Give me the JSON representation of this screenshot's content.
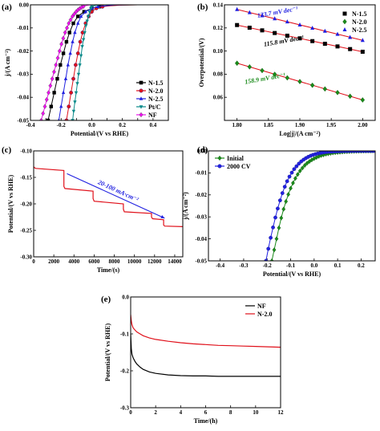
{
  "chart_data": [
    {
      "id": "a",
      "panel_label": "(a)",
      "type": "line",
      "xlabel": "Potential/(V vs RHE)",
      "ylabel": "j/(A cm⁻²)",
      "xlim": [
        -0.4,
        0.5
      ],
      "ylim": [
        -0.05,
        0.0
      ],
      "xticks": [
        -0.4,
        -0.3,
        -0.2,
        -0.1,
        0.0,
        0.1,
        0.2,
        0.3,
        0.4,
        0.5
      ],
      "xtick_labels": [
        "-0.4",
        "",
        "-0.2",
        "",
        "0.0",
        "",
        "0.2",
        "",
        "0.4",
        ""
      ],
      "yticks": [
        0.0,
        -0.01,
        -0.02,
        -0.03,
        -0.04,
        -0.05
      ],
      "ytick_labels": [
        "0.00",
        "-0.01",
        "-0.02",
        "-0.03",
        "-0.04",
        "-0.05"
      ],
      "legend_position": "bottom-right",
      "series": [
        {
          "name": "N-1.5",
          "color": "#000000",
          "marker": "square",
          "x": [
            -0.285,
            -0.265,
            -0.245,
            -0.225,
            -0.205,
            -0.185,
            -0.165,
            -0.145,
            -0.12,
            -0.09,
            -0.05,
            0.0,
            0.05,
            0.1,
            0.15,
            0.2,
            0.3,
            0.4,
            0.5
          ],
          "y": [
            -0.05,
            -0.044,
            -0.038,
            -0.032,
            -0.026,
            -0.021,
            -0.016,
            -0.012,
            -0.008,
            -0.005,
            -0.003,
            -0.0015,
            -0.0008,
            -0.0004,
            -0.0002,
            -0.0001,
            0.0,
            0.0,
            0.0
          ]
        },
        {
          "name": "N-2.0",
          "color": "#e0101a",
          "marker": "circle",
          "x": [
            -0.165,
            -0.15,
            -0.135,
            -0.12,
            -0.105,
            -0.09,
            -0.075,
            -0.06,
            -0.04,
            -0.02,
            0.0,
            0.03,
            0.07,
            0.12,
            0.2,
            0.3,
            0.4,
            0.5
          ],
          "y": [
            -0.05,
            -0.044,
            -0.038,
            -0.032,
            -0.026,
            -0.021,
            -0.016,
            -0.012,
            -0.008,
            -0.005,
            -0.003,
            -0.0015,
            -0.0008,
            -0.0004,
            -0.0001,
            0.0,
            0.0,
            0.0
          ]
        },
        {
          "name": "N-2.5",
          "color": "#2020e0",
          "marker": "triangle",
          "x": [
            -0.215,
            -0.2,
            -0.185,
            -0.17,
            -0.155,
            -0.14,
            -0.125,
            -0.11,
            -0.09,
            -0.07,
            -0.04,
            0.0,
            0.04,
            0.09,
            0.15,
            0.25,
            0.35,
            0.5
          ],
          "y": [
            -0.05,
            -0.044,
            -0.038,
            -0.032,
            -0.026,
            -0.021,
            -0.016,
            -0.012,
            -0.008,
            -0.005,
            -0.003,
            -0.0015,
            -0.0008,
            -0.0004,
            -0.0001,
            0.0,
            0.0,
            0.0
          ]
        },
        {
          "name": "Pt/C",
          "color": "#0a8a8a",
          "marker": "triangle-down",
          "x": [
            -0.125,
            -0.118,
            -0.11,
            -0.102,
            -0.094,
            -0.086,
            -0.078,
            -0.07,
            -0.062,
            -0.054,
            -0.046,
            -0.038,
            -0.03,
            -0.022,
            -0.014,
            -0.006,
            0.0,
            0.02,
            0.05,
            0.1,
            0.2,
            0.3,
            0.4,
            0.5
          ],
          "y": [
            -0.05,
            -0.046,
            -0.042,
            -0.038,
            -0.034,
            -0.03,
            -0.026,
            -0.022,
            -0.018,
            -0.015,
            -0.012,
            -0.009,
            -0.007,
            -0.005,
            -0.003,
            -0.0015,
            -0.0008,
            -0.0003,
            -0.0001,
            0.0,
            0.0,
            0.0,
            0.0,
            0.0
          ]
        },
        {
          "name": "NF",
          "color": "#ee10ee",
          "marker": "diamond",
          "x": [
            -0.33,
            -0.318,
            -0.306,
            -0.294,
            -0.282,
            -0.27,
            -0.258,
            -0.246,
            -0.234,
            -0.222,
            -0.21,
            -0.198,
            -0.186,
            -0.174,
            -0.162,
            -0.15,
            -0.138,
            -0.126,
            -0.114,
            -0.102,
            -0.09,
            -0.078,
            -0.066,
            -0.054,
            -0.042,
            -0.03,
            -0.018,
            -0.006,
            0.006,
            0.02,
            0.05,
            0.1,
            0.2,
            0.3,
            0.4,
            0.5
          ],
          "y": [
            -0.05,
            -0.047,
            -0.044,
            -0.041,
            -0.038,
            -0.035,
            -0.032,
            -0.029,
            -0.026,
            -0.023,
            -0.02,
            -0.017,
            -0.0145,
            -0.012,
            -0.01,
            -0.008,
            -0.0065,
            -0.005,
            -0.004,
            -0.003,
            -0.0022,
            -0.0016,
            -0.0011,
            -0.0007,
            -0.0004,
            -0.0002,
            -0.0001,
            -5e-05,
            0.0,
            0.0,
            0.0,
            0.0,
            0.0,
            0.0,
            0.0,
            0.0
          ]
        }
      ]
    },
    {
      "id": "b",
      "panel_label": "(b)",
      "type": "scatter",
      "xlabel": "Log|j|/(A cm⁻²)",
      "ylabel": "Overpotential/(V)",
      "xlim": [
        1.78,
        2.02
      ],
      "ylim": [
        0.04,
        0.14
      ],
      "xticks": [
        1.8,
        1.85,
        1.9,
        1.95,
        2.0
      ],
      "xtick_labels": [
        "1.80",
        "1.85",
        "1.90",
        "1.95",
        "2.00"
      ],
      "yticks": [
        0.06,
        0.08,
        0.1,
        0.12,
        0.14
      ],
      "ytick_labels": [
        "0.06",
        "0.08",
        "0.10",
        "0.12",
        "0.14"
      ],
      "legend_position": "top-right",
      "series": [
        {
          "name": "N-1.5",
          "color": "#000000",
          "marker": "square",
          "fit_color": "#e0101a",
          "x": [
            1.8,
            1.82,
            1.84,
            1.86,
            1.88,
            1.9,
            1.92,
            1.94,
            1.96,
            1.98,
            2.0
          ],
          "y": [
            0.1225,
            0.1202,
            0.1179,
            0.1156,
            0.1133,
            0.111,
            0.1086,
            0.1063,
            0.104,
            0.1017,
            0.0994
          ]
        },
        {
          "name": "N-2.0",
          "color": "#1a8a1a",
          "marker": "diamond",
          "fit_color": "#e0101a",
          "x": [
            1.8,
            1.82,
            1.84,
            1.86,
            1.88,
            1.9,
            1.92,
            1.94,
            1.96,
            1.98,
            2.0
          ],
          "y": [
            0.0895,
            0.0863,
            0.0831,
            0.0799,
            0.0768,
            0.0736,
            0.0704,
            0.0672,
            0.0641,
            0.0609,
            0.0577
          ]
        },
        {
          "name": "N-2.5",
          "color": "#2020e0",
          "marker": "triangle",
          "fit_color": "#e0101a",
          "x": [
            1.8,
            1.82,
            1.84,
            1.86,
            1.88,
            1.9,
            1.92,
            1.94,
            1.96,
            1.98,
            2.0
          ],
          "y": [
            0.136,
            0.1333,
            0.1306,
            0.128,
            0.1253,
            0.1226,
            0.1199,
            0.1173,
            0.1146,
            0.1119,
            0.1093
          ]
        }
      ],
      "annotations": [
        {
          "text": "133.7 mV dec⁻¹",
          "color": "#2020e0",
          "x": 1.865,
          "y": 0.132
        },
        {
          "text": "115.8 mV dec⁻¹",
          "color": "#000000",
          "x": 1.875,
          "y": 0.107
        },
        {
          "text": "158.9 mV dec⁻¹",
          "color": "#1a8a1a",
          "x": 1.845,
          "y": 0.0745
        }
      ]
    },
    {
      "id": "c",
      "panel_label": "(c)",
      "type": "line",
      "xlabel": "Time/(s)",
      "ylabel": "Potential/(V vs RHE)",
      "xlim": [
        0,
        14800
      ],
      "ylim": [
        -0.3,
        -0.1
      ],
      "xticks": [
        0,
        2000,
        4000,
        6000,
        8000,
        10000,
        12000,
        14000
      ],
      "xtick_labels": [
        "0",
        "2000",
        "4000",
        "6000",
        "8000",
        "10000",
        "12000",
        "14000"
      ],
      "yticks": [
        -0.1,
        -0.15,
        -0.2,
        -0.25,
        -0.3
      ],
      "ytick_labels": [
        "-0.10",
        "-0.15",
        "-0.20",
        "-0.25",
        "-0.30"
      ],
      "series": [
        {
          "name": "",
          "color": "#e0101a",
          "x": [
            0,
            100,
            200,
            3000,
            3000,
            3100,
            5900,
            5900,
            6000,
            8900,
            8900,
            9000,
            11700,
            11700,
            11800,
            12900,
            12900,
            13000,
            14800
          ],
          "y": [
            -0.13,
            -0.132,
            -0.133,
            -0.137,
            -0.167,
            -0.171,
            -0.176,
            -0.19,
            -0.195,
            -0.2,
            -0.21,
            -0.215,
            -0.218,
            -0.225,
            -0.228,
            -0.23,
            -0.24,
            -0.242,
            -0.243
          ]
        }
      ],
      "annotations": [
        {
          "text": "20-100 mA·cm⁻²",
          "color": "#2020e0",
          "arrow_from": [
            3300,
            -0.143
          ],
          "arrow_to": [
            13000,
            -0.227
          ]
        }
      ]
    },
    {
      "id": "d",
      "panel_label": "(d)",
      "type": "line",
      "xlabel": "Potential/(V vs RHE)",
      "ylabel": "j/(A cm⁻²)",
      "xlim": [
        -0.45,
        0.26
      ],
      "ylim": [
        -0.05,
        0.0
      ],
      "xticks": [
        -0.4,
        -0.3,
        -0.2,
        -0.1,
        0.0,
        0.1,
        0.2
      ],
      "xtick_labels": [
        "-0.4",
        "-0.3",
        "-0.2",
        "-0.1",
        "0.0",
        "0.1",
        "0.2"
      ],
      "yticks": [
        0.0,
        -0.01,
        -0.02,
        -0.03,
        -0.04,
        -0.05
      ],
      "ytick_labels": [
        "0.00",
        "-0.01",
        "-0.02",
        "-0.03",
        "-0.04",
        "-0.05"
      ],
      "legend_position": "top-left",
      "series": [
        {
          "name": "Initial",
          "color": "#1a8a1a",
          "marker": "diamond",
          "x": [
            -0.18,
            -0.17,
            -0.16,
            -0.15,
            -0.14,
            -0.13,
            -0.12,
            -0.11,
            -0.1,
            -0.09,
            -0.08,
            -0.07,
            -0.06,
            -0.05,
            -0.04,
            -0.03,
            -0.02,
            -0.01,
            0.0,
            0.01,
            0.02,
            0.03,
            0.04,
            0.05,
            0.06,
            0.07,
            0.08,
            0.09,
            0.1,
            0.11,
            0.12,
            0.13,
            0.14,
            0.15,
            0.16,
            0.17,
            0.18,
            0.19,
            0.2,
            0.21,
            0.22,
            0.23,
            0.24,
            0.25
          ],
          "y": [
            -0.05,
            -0.045,
            -0.04,
            -0.035,
            -0.0305,
            -0.0265,
            -0.023,
            -0.0198,
            -0.017,
            -0.0146,
            -0.0125,
            -0.0107,
            -0.0091,
            -0.0078,
            -0.0066,
            -0.0056,
            -0.0048,
            -0.0041,
            -0.0035,
            -0.003,
            -0.0025,
            -0.0021,
            -0.0018,
            -0.0015,
            -0.0013,
            -0.0011,
            -0.0009,
            -0.0008,
            -0.0007,
            -0.0006,
            -0.0005,
            -0.0004,
            -0.00035,
            -0.0003,
            -0.00025,
            -0.0002,
            -0.00015,
            -0.00012,
            -0.0001,
            -8e-05,
            -6e-05,
            -4e-05,
            -2e-05,
            0.0
          ]
        },
        {
          "name": "2000 CV",
          "color": "#2020e0",
          "marker": "circle",
          "x": [
            -0.205,
            -0.195,
            -0.185,
            -0.175,
            -0.165,
            -0.155,
            -0.145,
            -0.135,
            -0.125,
            -0.115,
            -0.105,
            -0.095,
            -0.085,
            -0.075,
            -0.065,
            -0.055,
            -0.045,
            -0.035,
            -0.025,
            -0.015,
            -0.005,
            0.005,
            0.015,
            0.025,
            0.035,
            0.045,
            0.055,
            0.065,
            0.075,
            0.085,
            0.095,
            0.105,
            0.115,
            0.125,
            0.135,
            0.145,
            0.155,
            0.165,
            0.175,
            0.185,
            0.195,
            0.205,
            0.215,
            0.225,
            0.235,
            0.245,
            0.255
          ],
          "y": [
            -0.05,
            -0.0445,
            -0.0395,
            -0.0348,
            -0.0303,
            -0.0262,
            -0.0225,
            -0.0192,
            -0.0163,
            -0.0138,
            -0.0117,
            -0.0099,
            -0.0083,
            -0.007,
            -0.0058,
            -0.0048,
            -0.004,
            -0.0033,
            -0.0027,
            -0.0022,
            -0.0018,
            -0.0015,
            -0.0012,
            -0.001,
            -0.0008,
            -0.00065,
            -0.00052,
            -0.00042,
            -0.00034,
            -0.00027,
            -0.00021,
            -0.00016,
            -0.00012,
            -9e-05,
            -7e-05,
            -5e-05,
            -4e-05,
            -3e-05,
            -2e-05,
            -1e-05,
            0.0,
            0.0,
            0.0,
            0.0,
            0.0,
            0.0,
            0.0
          ]
        }
      ]
    },
    {
      "id": "e",
      "panel_label": "(e)",
      "type": "line",
      "xlabel": "Time/(h)",
      "ylabel": "Potential/(V vs RHE)",
      "xlim": [
        0,
        12
      ],
      "ylim": [
        -0.3,
        0.0
      ],
      "xticks": [
        0,
        2,
        4,
        6,
        8,
        10,
        12
      ],
      "xtick_labels": [
        "0",
        "2",
        "4",
        "6",
        "8",
        "10",
        "12"
      ],
      "yticks": [
        0.0,
        -0.1,
        -0.2,
        -0.3
      ],
      "ytick_labels": [
        "0.0",
        "-0.1",
        "-0.2",
        "-0.3"
      ],
      "legend_position": "top-right",
      "series": [
        {
          "name": "NF",
          "color": "#000000",
          "x": [
            0,
            0.05,
            0.1,
            0.2,
            0.35,
            0.5,
            0.75,
            1,
            1.5,
            2,
            3,
            4,
            5,
            6,
            7,
            8,
            9,
            10,
            11,
            12
          ],
          "y": [
            -0.1,
            -0.14,
            -0.155,
            -0.165,
            -0.175,
            -0.182,
            -0.19,
            -0.196,
            -0.203,
            -0.207,
            -0.211,
            -0.213,
            -0.214,
            -0.214,
            -0.215,
            -0.215,
            -0.215,
            -0.215,
            -0.215,
            -0.215
          ]
        },
        {
          "name": "N-2.0",
          "color": "#e0101a",
          "x": [
            0,
            0.05,
            0.1,
            0.2,
            0.35,
            0.5,
            0.75,
            1,
            1.5,
            2,
            3,
            4,
            5,
            6,
            7,
            8,
            9,
            10,
            11,
            12
          ],
          "y": [
            -0.048,
            -0.065,
            -0.075,
            -0.084,
            -0.09,
            -0.095,
            -0.1,
            -0.105,
            -0.111,
            -0.115,
            -0.12,
            -0.124,
            -0.127,
            -0.129,
            -0.131,
            -0.132,
            -0.133,
            -0.134,
            -0.135,
            -0.136
          ]
        }
      ]
    }
  ]
}
